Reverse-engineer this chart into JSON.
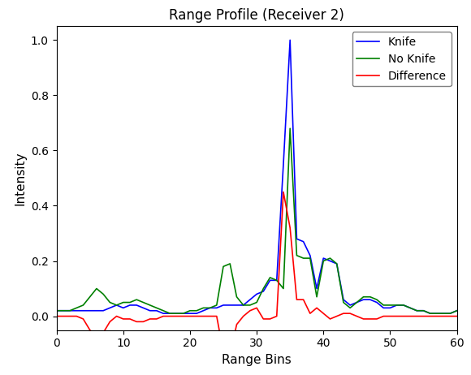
{
  "title": "Range Profile (Receiver 2)",
  "xlabel": "Range Bins",
  "ylabel": "Intensity",
  "xlim": [
    0,
    60
  ],
  "ylim": [
    -0.05,
    1.05
  ],
  "legend": [
    "Knife",
    "No Knife",
    "Difference"
  ],
  "colors": [
    "blue",
    "green",
    "red"
  ],
  "x": [
    0,
    1,
    2,
    3,
    4,
    5,
    6,
    7,
    8,
    9,
    10,
    11,
    12,
    13,
    14,
    15,
    16,
    17,
    18,
    19,
    20,
    21,
    22,
    23,
    24,
    25,
    26,
    27,
    28,
    29,
    30,
    31,
    32,
    33,
    34,
    35,
    36,
    37,
    38,
    39,
    40,
    41,
    42,
    43,
    44,
    45,
    46,
    47,
    48,
    49,
    50,
    51,
    52,
    53,
    54,
    55,
    56,
    57,
    58,
    59,
    60
  ],
  "knife": [
    0.02,
    0.02,
    0.02,
    0.02,
    0.02,
    0.02,
    0.02,
    0.02,
    0.03,
    0.04,
    0.03,
    0.04,
    0.04,
    0.03,
    0.02,
    0.02,
    0.01,
    0.01,
    0.01,
    0.01,
    0.01,
    0.01,
    0.02,
    0.03,
    0.03,
    0.04,
    0.04,
    0.04,
    0.04,
    0.06,
    0.08,
    0.09,
    0.13,
    0.13,
    0.55,
    1.0,
    0.28,
    0.27,
    0.22,
    0.1,
    0.21,
    0.2,
    0.19,
    0.06,
    0.04,
    0.05,
    0.06,
    0.06,
    0.05,
    0.03,
    0.03,
    0.04,
    0.04,
    0.03,
    0.02,
    0.02,
    0.01,
    0.01,
    0.01,
    0.01,
    0.02
  ],
  "no_knife": [
    0.02,
    0.02,
    0.02,
    0.03,
    0.04,
    0.07,
    0.1,
    0.08,
    0.05,
    0.04,
    0.05,
    0.05,
    0.06,
    0.05,
    0.04,
    0.03,
    0.02,
    0.01,
    0.01,
    0.01,
    0.02,
    0.02,
    0.03,
    0.03,
    0.04,
    0.18,
    0.19,
    0.07,
    0.04,
    0.04,
    0.05,
    0.1,
    0.14,
    0.13,
    0.1,
    0.68,
    0.22,
    0.21,
    0.21,
    0.07,
    0.2,
    0.21,
    0.19,
    0.05,
    0.03,
    0.05,
    0.07,
    0.07,
    0.06,
    0.04,
    0.04,
    0.04,
    0.04,
    0.03,
    0.02,
    0.02,
    0.01,
    0.01,
    0.01,
    0.01,
    0.02
  ],
  "difference": [
    0.0,
    0.0,
    0.0,
    0.0,
    -0.01,
    -0.05,
    -0.07,
    -0.06,
    -0.02,
    0.0,
    -0.01,
    -0.01,
    -0.02,
    -0.02,
    -0.01,
    -0.01,
    0.0,
    0.0,
    0.0,
    0.0,
    0.0,
    0.0,
    0.0,
    0.0,
    0.0,
    -0.13,
    -0.14,
    -0.03,
    0.0,
    0.02,
    0.03,
    -0.01,
    -0.01,
    0.0,
    0.45,
    0.32,
    0.06,
    0.06,
    0.01,
    0.03,
    0.01,
    -0.01,
    0.0,
    0.01,
    0.01,
    0.0,
    -0.01,
    -0.01,
    -0.01,
    0.0,
    0.0,
    0.0,
    0.0,
    0.0,
    0.0,
    0.0,
    0.0,
    0.0,
    0.0,
    0.0,
    0.0
  ],
  "figsize": [
    5.8,
    4.62
  ],
  "dpi": 100,
  "title_fontsize": 12,
  "label_fontsize": 11
}
